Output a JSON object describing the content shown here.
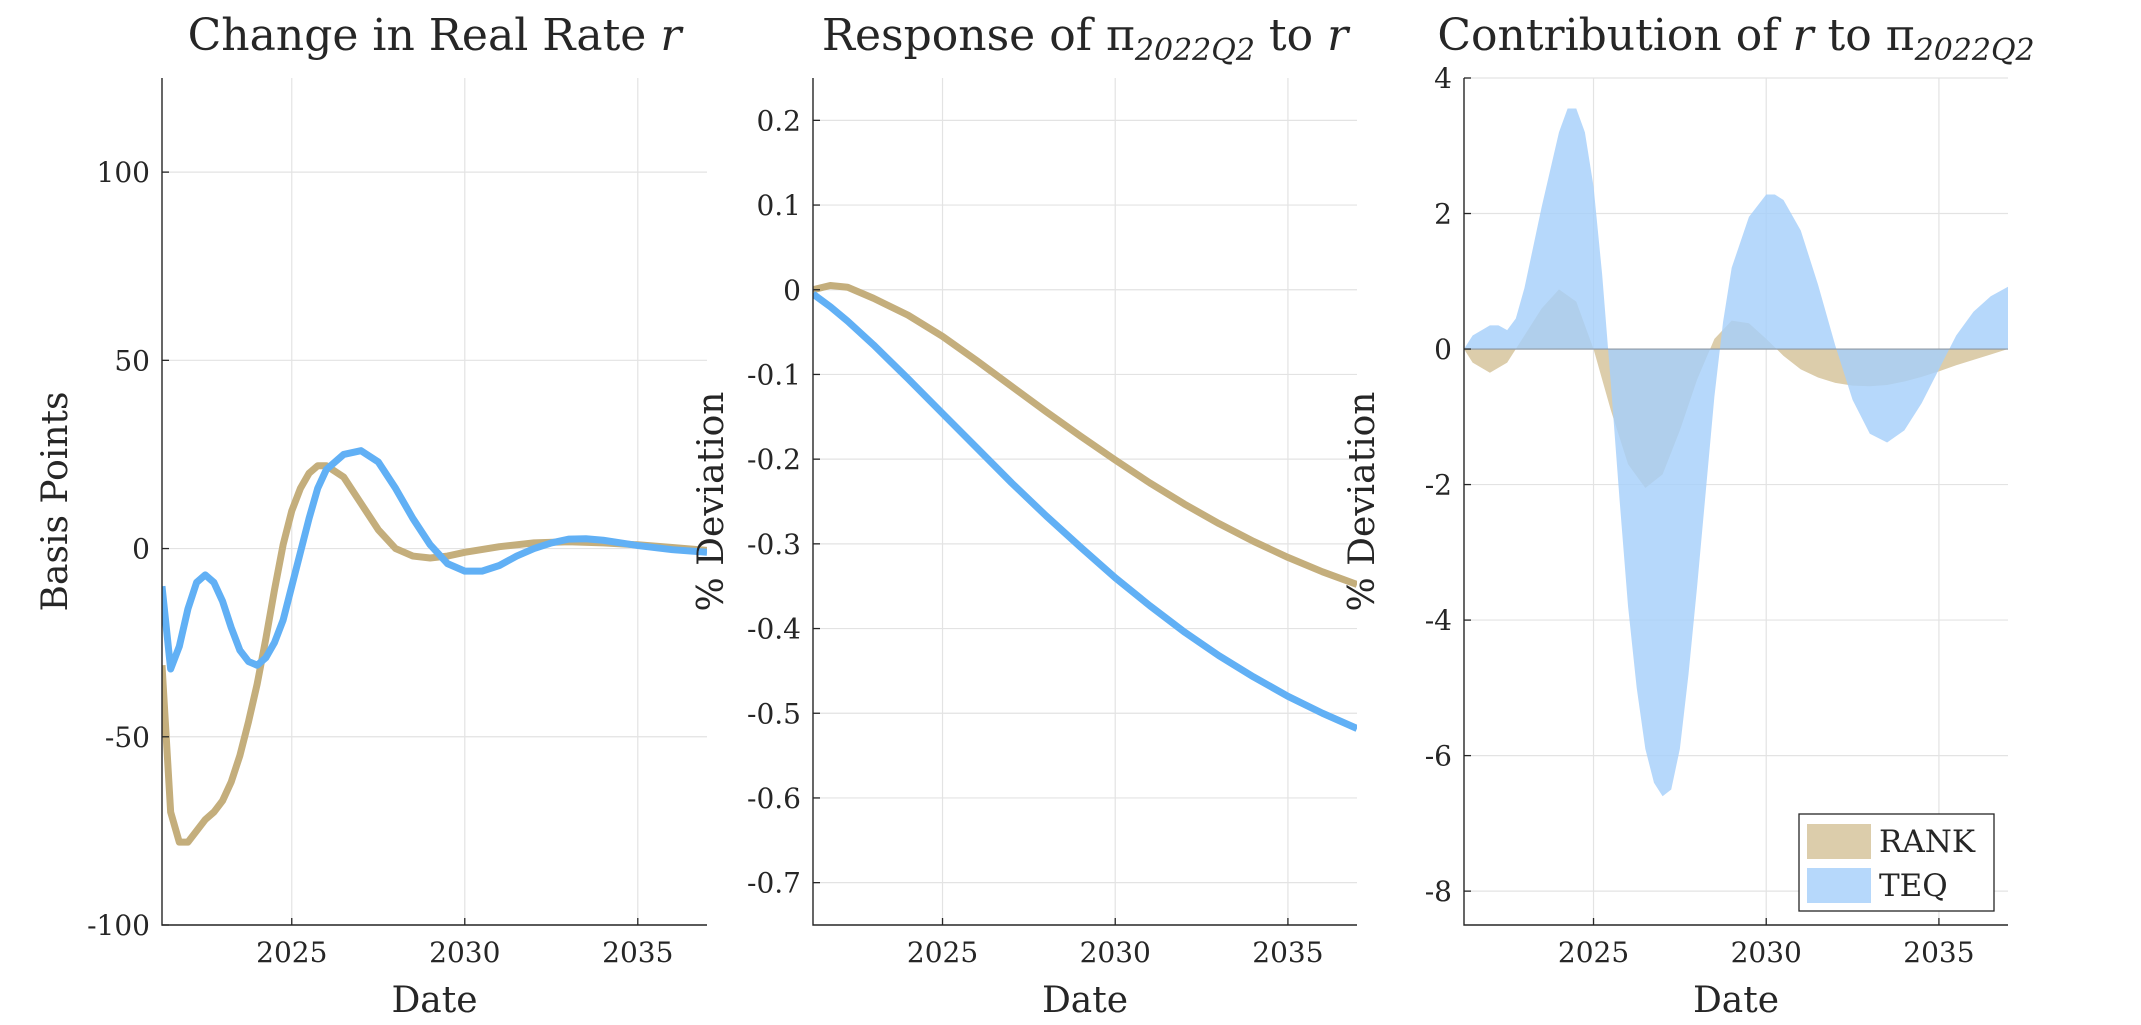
{
  "colors": {
    "rank": "#c4ae7c",
    "teq": "#61b0f5",
    "rank_fill": "#dccdab",
    "teq_fill": "#a6cffa",
    "axis": "#262626",
    "grid": "#e3e3e3"
  },
  "chart_data": [
    {
      "type": "line",
      "title_text": "Change in Real Rate ",
      "title_sym": "r",
      "xlabel": "Date",
      "ylabel": "Basis Points",
      "xlim": [
        2021.25,
        2037
      ],
      "ylim": [
        -100,
        125
      ],
      "xticks": [
        2025,
        2030,
        2035
      ],
      "xtick_labels": [
        "2025",
        "2030",
        "2035"
      ],
      "yticks": [
        -100,
        -50,
        0,
        50,
        100
      ],
      "ytick_labels": [
        "-100",
        "-50",
        "0",
        "50",
        "100"
      ],
      "grid": true,
      "series": [
        {
          "name": "RANK",
          "color_key": "rank",
          "points": [
            [
              2021.25,
              -31
            ],
            [
              2021.5,
              -70
            ],
            [
              2021.75,
              -78
            ],
            [
              2022.0,
              -78
            ],
            [
              2022.25,
              -75
            ],
            [
              2022.5,
              -72
            ],
            [
              2022.75,
              -70
            ],
            [
              2023.0,
              -67
            ],
            [
              2023.25,
              -62
            ],
            [
              2023.5,
              -55
            ],
            [
              2023.75,
              -46
            ],
            [
              2024.0,
              -36
            ],
            [
              2024.25,
              -24
            ],
            [
              2024.5,
              -11
            ],
            [
              2024.75,
              1
            ],
            [
              2025.0,
              10
            ],
            [
              2025.25,
              16
            ],
            [
              2025.5,
              20
            ],
            [
              2025.75,
              22
            ],
            [
              2026.0,
              22
            ],
            [
              2026.5,
              19
            ],
            [
              2027.0,
              12
            ],
            [
              2027.5,
              5
            ],
            [
              2028.0,
              0
            ],
            [
              2028.5,
              -2
            ],
            [
              2029.0,
              -2.5
            ],
            [
              2029.5,
              -2
            ],
            [
              2030.0,
              -1
            ],
            [
              2031.0,
              0.5
            ],
            [
              2032.0,
              1.5
            ],
            [
              2033.0,
              1.8
            ],
            [
              2034.0,
              1.5
            ],
            [
              2035.0,
              1
            ],
            [
              2036.0,
              0.3
            ],
            [
              2037.0,
              -0.5
            ]
          ]
        },
        {
          "name": "TEQ",
          "color_key": "teq",
          "points": [
            [
              2021.25,
              -10
            ],
            [
              2021.5,
              -32
            ],
            [
              2021.75,
              -26
            ],
            [
              2022.0,
              -16
            ],
            [
              2022.25,
              -9
            ],
            [
              2022.5,
              -7
            ],
            [
              2022.75,
              -9
            ],
            [
              2023.0,
              -14
            ],
            [
              2023.25,
              -21
            ],
            [
              2023.5,
              -27
            ],
            [
              2023.75,
              -30
            ],
            [
              2024.0,
              -31
            ],
            [
              2024.25,
              -29
            ],
            [
              2024.5,
              -25
            ],
            [
              2024.75,
              -19
            ],
            [
              2025.0,
              -10
            ],
            [
              2025.25,
              -1
            ],
            [
              2025.5,
              8
            ],
            [
              2025.75,
              16
            ],
            [
              2026.0,
              21
            ],
            [
              2026.5,
              25
            ],
            [
              2027.0,
              26
            ],
            [
              2027.5,
              23
            ],
            [
              2028.0,
              16
            ],
            [
              2028.5,
              8
            ],
            [
              2029.0,
              1
            ],
            [
              2029.5,
              -4
            ],
            [
              2030.0,
              -6
            ],
            [
              2030.5,
              -6
            ],
            [
              2031.0,
              -4.5
            ],
            [
              2031.5,
              -2
            ],
            [
              2032.0,
              0
            ],
            [
              2032.5,
              1.5
            ],
            [
              2033.0,
              2.5
            ],
            [
              2033.5,
              2.6
            ],
            [
              2034.0,
              2.2
            ],
            [
              2035.0,
              0.8
            ],
            [
              2036.0,
              -0.3
            ],
            [
              2037.0,
              -1
            ]
          ]
        }
      ]
    },
    {
      "type": "line",
      "title_text": "Response of ",
      "title_sym": "π",
      "title_sub": "2022Q2",
      "title_tail": " to ",
      "title_sym2": "r",
      "xlabel": "Date",
      "ylabel": "% Deviation",
      "xlim": [
        2021.25,
        2037
      ],
      "ylim": [
        -0.75,
        0.25
      ],
      "xticks": [
        2025,
        2030,
        2035
      ],
      "xtick_labels": [
        "2025",
        "2030",
        "2035"
      ],
      "yticks": [
        -0.7,
        -0.6,
        -0.5,
        -0.4,
        -0.3,
        -0.2,
        -0.1,
        0,
        0.1,
        0.2
      ],
      "ytick_labels": [
        "-0.7",
        "-0.6",
        "-0.5",
        "-0.4",
        "-0.3",
        "-0.2",
        "-0.1",
        "0",
        "0.1",
        "0.2"
      ],
      "grid": true,
      "series": [
        {
          "name": "RANK",
          "color_key": "rank",
          "points": [
            [
              2021.25,
              0
            ],
            [
              2021.75,
              0.005
            ],
            [
              2022.25,
              0.003
            ],
            [
              2023.0,
              -0.01
            ],
            [
              2024.0,
              -0.03
            ],
            [
              2025.0,
              -0.055
            ],
            [
              2026.0,
              -0.084
            ],
            [
              2027.0,
              -0.114
            ],
            [
              2028.0,
              -0.144
            ],
            [
              2029.0,
              -0.173
            ],
            [
              2030.0,
              -0.201
            ],
            [
              2031.0,
              -0.228
            ],
            [
              2032.0,
              -0.253
            ],
            [
              2033.0,
              -0.276
            ],
            [
              2034.0,
              -0.297
            ],
            [
              2035.0,
              -0.316
            ],
            [
              2036.0,
              -0.333
            ],
            [
              2037.0,
              -0.348
            ]
          ]
        },
        {
          "name": "TEQ",
          "color_key": "teq",
          "points": [
            [
              2021.25,
              -0.005
            ],
            [
              2021.75,
              -0.02
            ],
            [
              2022.25,
              -0.037
            ],
            [
              2023.0,
              -0.065
            ],
            [
              2024.0,
              -0.105
            ],
            [
              2025.0,
              -0.146
            ],
            [
              2026.0,
              -0.187
            ],
            [
              2027.0,
              -0.228
            ],
            [
              2028.0,
              -0.267
            ],
            [
              2029.0,
              -0.304
            ],
            [
              2030.0,
              -0.34
            ],
            [
              2031.0,
              -0.373
            ],
            [
              2032.0,
              -0.404
            ],
            [
              2033.0,
              -0.432
            ],
            [
              2034.0,
              -0.457
            ],
            [
              2035.0,
              -0.48
            ],
            [
              2036.0,
              -0.5
            ],
            [
              2037.0,
              -0.518
            ]
          ]
        }
      ]
    },
    {
      "type": "area",
      "title_text": "Contribution of ",
      "title_sym": "r",
      "title_tail": " to ",
      "title_sym2": "π",
      "title_sub": "2022Q2",
      "xlabel": "Date",
      "ylabel": "% Deviation",
      "xlim": [
        2021.25,
        2037
      ],
      "ylim": [
        -8.5,
        4
      ],
      "xticks": [
        2025,
        2030,
        2035
      ],
      "xtick_labels": [
        "2025",
        "2030",
        "2035"
      ],
      "yticks": [
        -8,
        -6,
        -4,
        -2,
        0,
        2,
        4
      ],
      "ytick_labels": [
        "-8",
        "-6",
        "-4",
        "-2",
        "0",
        "2",
        "4"
      ],
      "grid": true,
      "legend": {
        "position": "bottom-right",
        "entries": [
          "RANK",
          "TEQ"
        ]
      },
      "series": [
        {
          "name": "RANK",
          "color_key": "rank_fill",
          "points": [
            [
              2021.25,
              0
            ],
            [
              2021.5,
              -0.2
            ],
            [
              2022.0,
              -0.35
            ],
            [
              2022.5,
              -0.2
            ],
            [
              2023.0,
              0.2
            ],
            [
              2023.5,
              0.6
            ],
            [
              2024.0,
              0.88
            ],
            [
              2024.5,
              0.7
            ],
            [
              2025.0,
              0
            ],
            [
              2025.5,
              -0.9
            ],
            [
              2026.0,
              -1.7
            ],
            [
              2026.5,
              -2.05
            ],
            [
              2027.0,
              -1.85
            ],
            [
              2027.5,
              -1.2
            ],
            [
              2028.0,
              -0.45
            ],
            [
              2028.5,
              0.15
            ],
            [
              2029.0,
              0.42
            ],
            [
              2029.5,
              0.38
            ],
            [
              2030.0,
              0.15
            ],
            [
              2030.5,
              -0.1
            ],
            [
              2031.0,
              -0.3
            ],
            [
              2031.5,
              -0.42
            ],
            [
              2032.0,
              -0.5
            ],
            [
              2032.5,
              -0.54
            ],
            [
              2033.0,
              -0.55
            ],
            [
              2033.5,
              -0.53
            ],
            [
              2034.0,
              -0.48
            ],
            [
              2034.5,
              -0.41
            ],
            [
              2035.0,
              -0.33
            ],
            [
              2035.5,
              -0.24
            ],
            [
              2036.0,
              -0.16
            ],
            [
              2036.5,
              -0.08
            ],
            [
              2037.0,
              0
            ]
          ]
        },
        {
          "name": "TEQ",
          "color_key": "teq_fill",
          "points": [
            [
              2021.25,
              0
            ],
            [
              2021.5,
              0.2
            ],
            [
              2022.0,
              0.35
            ],
            [
              2022.25,
              0.35
            ],
            [
              2022.5,
              0.28
            ],
            [
              2022.75,
              0.45
            ],
            [
              2023.0,
              0.9
            ],
            [
              2023.5,
              2.1
            ],
            [
              2024.0,
              3.2
            ],
            [
              2024.25,
              3.55
            ],
            [
              2024.5,
              3.55
            ],
            [
              2024.75,
              3.2
            ],
            [
              2025.0,
              2.4
            ],
            [
              2025.25,
              1.1
            ],
            [
              2025.5,
              -0.5
            ],
            [
              2025.75,
              -2.2
            ],
            [
              2026.0,
              -3.8
            ],
            [
              2026.25,
              -5.0
            ],
            [
              2026.5,
              -5.9
            ],
            [
              2026.75,
              -6.4
            ],
            [
              2027.0,
              -6.6
            ],
            [
              2027.25,
              -6.5
            ],
            [
              2027.5,
              -5.9
            ],
            [
              2027.75,
              -4.8
            ],
            [
              2028.0,
              -3.5
            ],
            [
              2028.25,
              -2.1
            ],
            [
              2028.5,
              -0.7
            ],
            [
              2028.75,
              0.4
            ],
            [
              2029.0,
              1.2
            ],
            [
              2029.5,
              1.95
            ],
            [
              2030.0,
              2.28
            ],
            [
              2030.25,
              2.28
            ],
            [
              2030.5,
              2.2
            ],
            [
              2031.0,
              1.75
            ],
            [
              2031.5,
              0.95
            ],
            [
              2032.0,
              0.05
            ],
            [
              2032.5,
              -0.75
            ],
            [
              2033.0,
              -1.25
            ],
            [
              2033.5,
              -1.38
            ],
            [
              2034.0,
              -1.2
            ],
            [
              2034.5,
              -0.8
            ],
            [
              2035.0,
              -0.3
            ],
            [
              2035.5,
              0.2
            ],
            [
              2036.0,
              0.55
            ],
            [
              2036.5,
              0.78
            ],
            [
              2037.0,
              0.92
            ]
          ]
        }
      ]
    }
  ]
}
